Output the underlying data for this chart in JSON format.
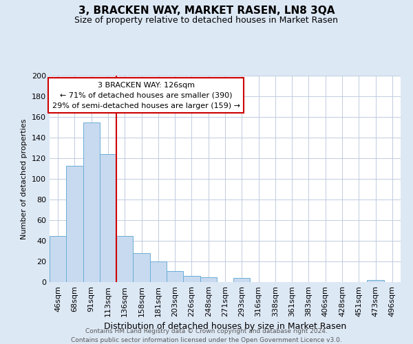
{
  "title": "3, BRACKEN WAY, MARKET RASEN, LN8 3QA",
  "subtitle": "Size of property relative to detached houses in Market Rasen",
  "xlabel": "Distribution of detached houses by size in Market Rasen",
  "ylabel": "Number of detached properties",
  "bar_labels": [
    "46sqm",
    "68sqm",
    "91sqm",
    "113sqm",
    "136sqm",
    "158sqm",
    "181sqm",
    "203sqm",
    "226sqm",
    "248sqm",
    "271sqm",
    "293sqm",
    "316sqm",
    "338sqm",
    "361sqm",
    "383sqm",
    "406sqm",
    "428sqm",
    "451sqm",
    "473sqm",
    "496sqm"
  ],
  "bar_values": [
    45,
    113,
    155,
    124,
    45,
    28,
    20,
    11,
    6,
    5,
    0,
    4,
    0,
    0,
    0,
    0,
    0,
    0,
    0,
    2,
    0
  ],
  "bar_color": "#c8daf0",
  "bar_edge_color": "#6baed6",
  "ylim": [
    0,
    200
  ],
  "yticks": [
    0,
    20,
    40,
    60,
    80,
    100,
    120,
    140,
    160,
    180,
    200
  ],
  "annotation_title": "3 BRACKEN WAY: 126sqm",
  "annotation_line1": "← 71% of detached houses are smaller (390)",
  "annotation_line2": "29% of semi-detached houses are larger (159) →",
  "annotation_box_color": "#ffffff",
  "annotation_box_edge": "#cc0000",
  "property_bar_index": 3,
  "red_line_x": 3.5,
  "footnote1": "Contains HM Land Registry data © Crown copyright and database right 2024.",
  "footnote2": "Contains public sector information licensed under the Open Government Licence v3.0.",
  "bg_color": "#dde8f5",
  "plot_bg_color": "#ffffff"
}
